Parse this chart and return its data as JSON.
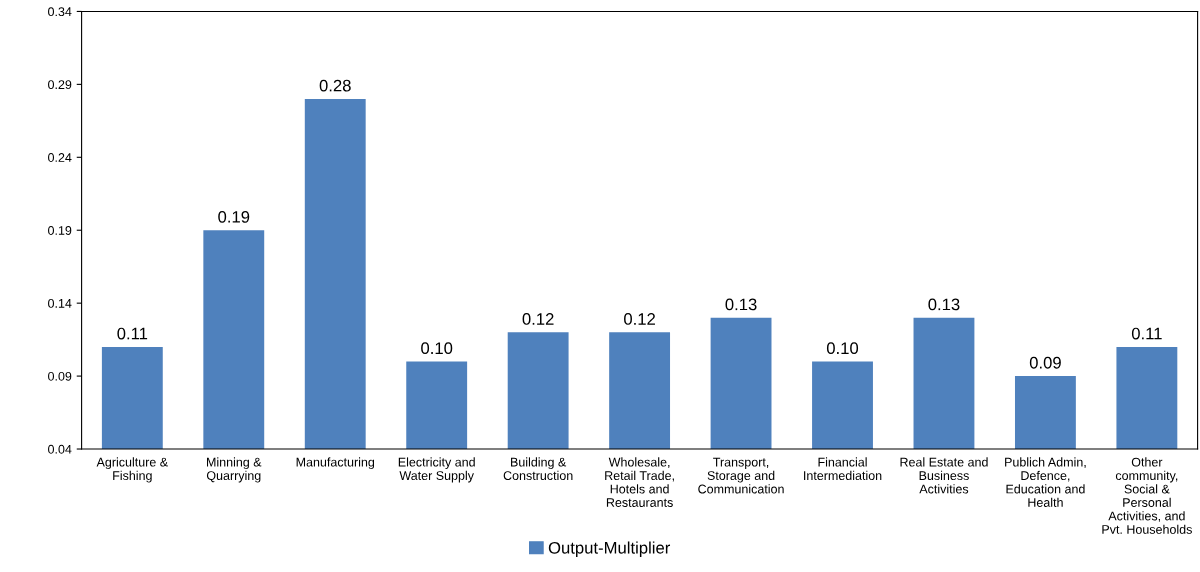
{
  "chart_data": {
    "type": "bar",
    "categories": [
      "Agriculture &\nFishing",
      "Minning &\nQuarrying",
      "Manufacturing",
      "Electricity and\nWater Supply",
      "Building &\nConstruction",
      "Wholesale,\nRetail Trade,\nHotels and\nRestaurants",
      "Transport,\nStorage and\nCommunication",
      "Financial\nIntermediation",
      "Real Estate and\nBusiness\nActivities",
      "Publich Admin,\nDefence,\nEducation and\nHealth",
      "Other\ncommunity,\nSocial &\nPersonal\nActivities, and\nPvt. Households"
    ],
    "series": [
      {
        "name": "Output-Multiplier",
        "color": "#4f81bd",
        "values": [
          0.11,
          0.19,
          0.28,
          0.1,
          0.12,
          0.12,
          0.13,
          0.1,
          0.13,
          0.09,
          0.11
        ],
        "value_labels": [
          "0.11",
          "0.19",
          "0.28",
          "0.10",
          "0.12",
          "0.12",
          "0.13",
          "0.10",
          "0.13",
          "0.09",
          "0.11"
        ]
      }
    ],
    "ylim": [
      0.04,
      0.34
    ],
    "yticks": [
      0.04,
      0.09,
      0.14,
      0.19,
      0.24,
      0.29,
      0.34
    ],
    "grid": false,
    "legend": "bottom"
  }
}
